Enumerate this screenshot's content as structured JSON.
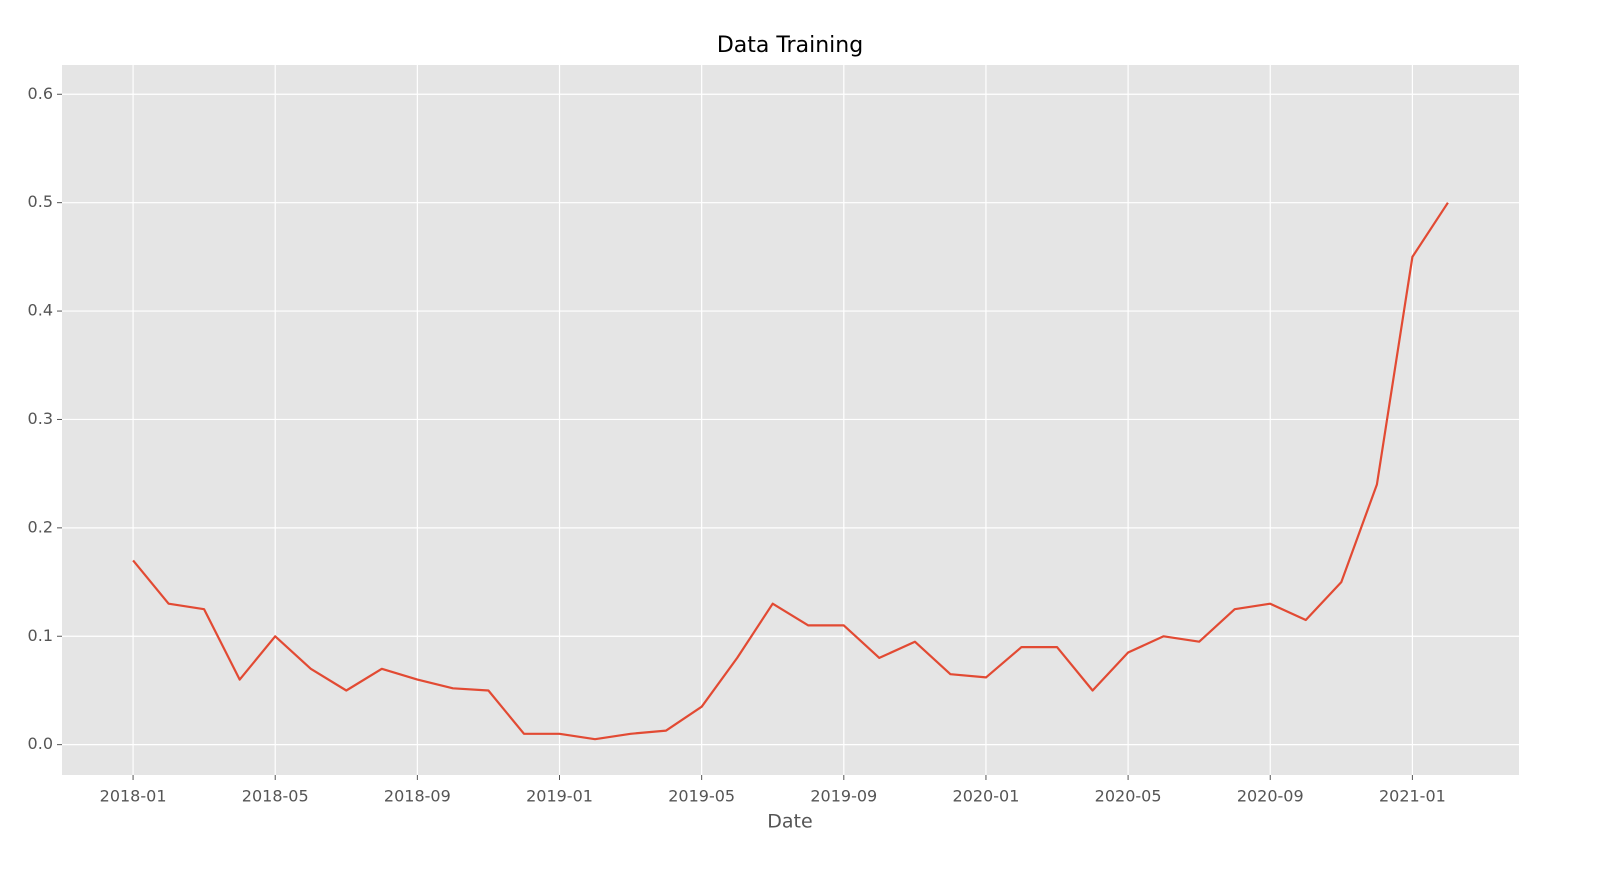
{
  "chart_data": {
    "type": "line",
    "title": "Data Training",
    "x_label": "Date",
    "x": [
      "2018-01",
      "2018-02",
      "2018-03",
      "2018-04",
      "2018-05",
      "2018-06",
      "2018-07",
      "2018-08",
      "2018-09",
      "2018-10",
      "2018-11",
      "2018-12",
      "2019-01",
      "2019-02",
      "2019-03",
      "2019-04",
      "2019-05",
      "2019-06",
      "2019-07",
      "2019-08",
      "2019-09",
      "2019-10",
      "2019-11",
      "2019-12",
      "2020-01",
      "2020-02",
      "2020-03",
      "2020-04",
      "2020-05",
      "2020-06",
      "2020-07",
      "2020-08",
      "2020-09",
      "2020-10",
      "2020-11",
      "2020-12",
      "2021-01",
      "2021-02"
    ],
    "values": [
      0.17,
      0.13,
      0.125,
      0.06,
      0.1,
      0.07,
      0.05,
      0.07,
      0.06,
      0.052,
      0.05,
      0.01,
      0.01,
      0.005,
      0.01,
      0.013,
      0.035,
      0.08,
      0.13,
      0.11,
      0.11,
      0.08,
      0.095,
      0.065,
      0.062,
      0.09,
      0.09,
      0.05,
      0.085,
      0.1,
      0.095,
      0.125,
      0.13,
      0.115,
      0.15,
      0.24,
      0.45,
      0.5
    ],
    "color": "#e24a33",
    "xlim": [
      "2017-11",
      "2021-04"
    ],
    "xticks": [
      "2018-01",
      "2018-05",
      "2018-09",
      "2019-01",
      "2019-05",
      "2019-09",
      "2020-01",
      "2020-05",
      "2020-09",
      "2021-01"
    ],
    "ylim": [
      -0.028,
      0.627
    ],
    "yticks": [
      {
        "value": 0,
        "label": "0.0"
      },
      0.1,
      0.2,
      0.3,
      0.4,
      0.5,
      0.6
    ],
    "grid": true
  }
}
